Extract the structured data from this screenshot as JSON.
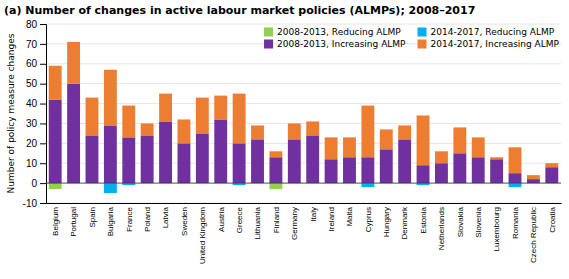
{
  "chart_data": {
    "type": "bar",
    "title": "(a) Number of changes in active labour market policies (ALMPs); 2008–2017",
    "ylabel": "Number of policy measure changes",
    "categories": [
      "Belgium",
      "Portugal",
      "Spain",
      "Bulgaria",
      "France",
      "Poland",
      "Latvia",
      "Sweden",
      "United Kingdom",
      "Austria",
      "Greece",
      "Lithuania",
      "Finland",
      "Germany",
      "Italy",
      "Ireland",
      "Malta",
      "Cyprus",
      "Hungary",
      "Denmark",
      "Estonia",
      "Netherlands",
      "Slovakia",
      "Slovenia",
      "Luxembourg",
      "Romania",
      "Czech Republic",
      "Croatia"
    ],
    "series": [
      {
        "name": "2008-2013, Reducing ALMP",
        "color": "#92d050",
        "values": [
          -3,
          0,
          0,
          0,
          0,
          0,
          0,
          0,
          0,
          0,
          0,
          0,
          -3,
          0,
          0,
          0,
          0,
          0,
          0,
          0,
          0,
          0,
          0,
          0,
          0,
          0,
          0,
          0
        ]
      },
      {
        "name": "2008-2013, Increasing ALMP",
        "color": "#7030a0",
        "values": [
          42,
          50,
          24,
          29,
          23,
          24,
          31,
          20,
          25,
          32,
          20,
          22,
          13,
          22,
          24,
          12,
          13,
          13,
          17,
          22,
          9,
          10,
          15,
          13,
          12,
          5,
          2,
          8
        ]
      },
      {
        "name": "2014-2017, Reducing ALMP",
        "color": "#00b0f0",
        "values": [
          0,
          0,
          0,
          -5,
          -1,
          0,
          0,
          0,
          0,
          0,
          -1,
          0,
          0,
          0,
          0,
          0,
          0,
          -2,
          0,
          0,
          -1,
          0,
          0,
          0,
          0,
          -2,
          0,
          0
        ]
      },
      {
        "name": "2014-2017, Increasing ALMP",
        "color": "#ed7d31",
        "values": [
          17,
          21,
          19,
          28,
          16,
          6,
          14,
          12,
          18,
          12,
          25,
          7,
          3,
          8,
          7,
          11,
          10,
          26,
          10,
          7,
          25,
          6,
          13,
          10,
          1,
          13,
          2,
          2
        ]
      }
    ],
    "stacked": true,
    "ylim": [
      -10,
      80
    ],
    "yticks": [
      -10,
      0,
      10,
      20,
      30,
      40,
      50,
      60,
      70,
      80
    ],
    "legend": "upper right"
  }
}
